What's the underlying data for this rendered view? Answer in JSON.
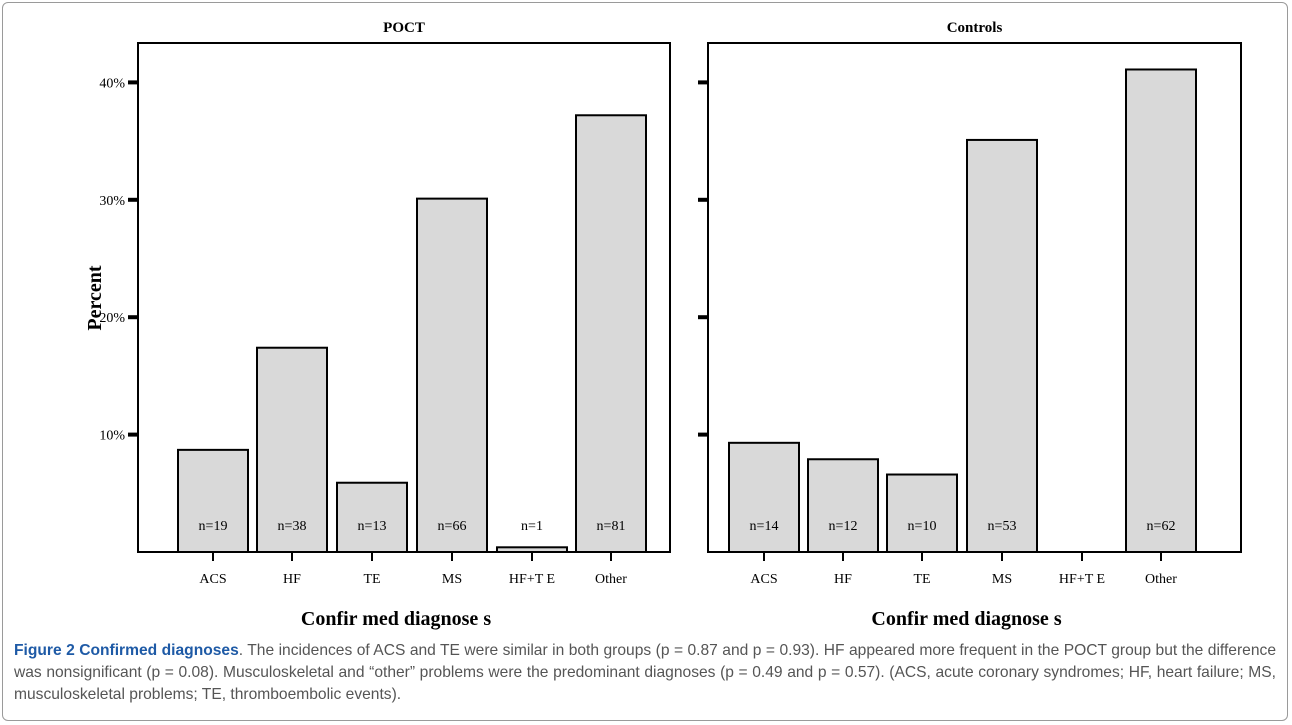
{
  "chart_data": [
    {
      "type": "bar",
      "title": "POCT",
      "categories": [
        "ACS",
        "HF",
        "TE",
        "MS",
        "HF+T E",
        "Other"
      ],
      "values": [
        8.7,
        17.4,
        5.9,
        30.1,
        0.4,
        37.2
      ],
      "data_labels": [
        "n=19",
        "n=38",
        "n=13",
        "n=66",
        "n=1",
        "n=81"
      ],
      "xlabel": "Confir med diagnose s",
      "ylabel": "Percent",
      "yticks": [
        "10%",
        "20%",
        "30%",
        "40%"
      ],
      "ylim": [
        0,
        40
      ],
      "grid": false
    },
    {
      "type": "bar",
      "title": "Controls",
      "categories": [
        "ACS",
        "HF",
        "TE",
        "MS",
        "HF+T E",
        "Other"
      ],
      "values": [
        9.3,
        7.9,
        6.6,
        35.1,
        0,
        41.1
      ],
      "data_labels": [
        "n=14",
        "n=12",
        "n=10",
        "n=53",
        "",
        "n=62"
      ],
      "xlabel": "Confir med diagnose s",
      "ylabel": "",
      "yticks": [],
      "ylim": [
        0,
        40
      ],
      "grid": false
    }
  ],
  "colors": {
    "bar_fill": "#d9d9d9",
    "bar_stroke": "#000000",
    "caption_title": "#1e5aa6",
    "caption_text": "#555555"
  },
  "caption": {
    "label": "Figure 2 Confirmed diagnoses",
    "text": ". The incidences of ACS and TE were similar in both groups (p = 0.87 and p = 0.93). HF appeared more frequent in the POCT group but the difference was nonsignificant (p = 0.08). Musculoskeletal and “other” problems were the predominant diagnoses (p = 0.49 and p = 0.57). (ACS, acute coronary syndromes; HF, heart failure; MS, musculoskeletal problems; TE, thromboembolic events)."
  }
}
